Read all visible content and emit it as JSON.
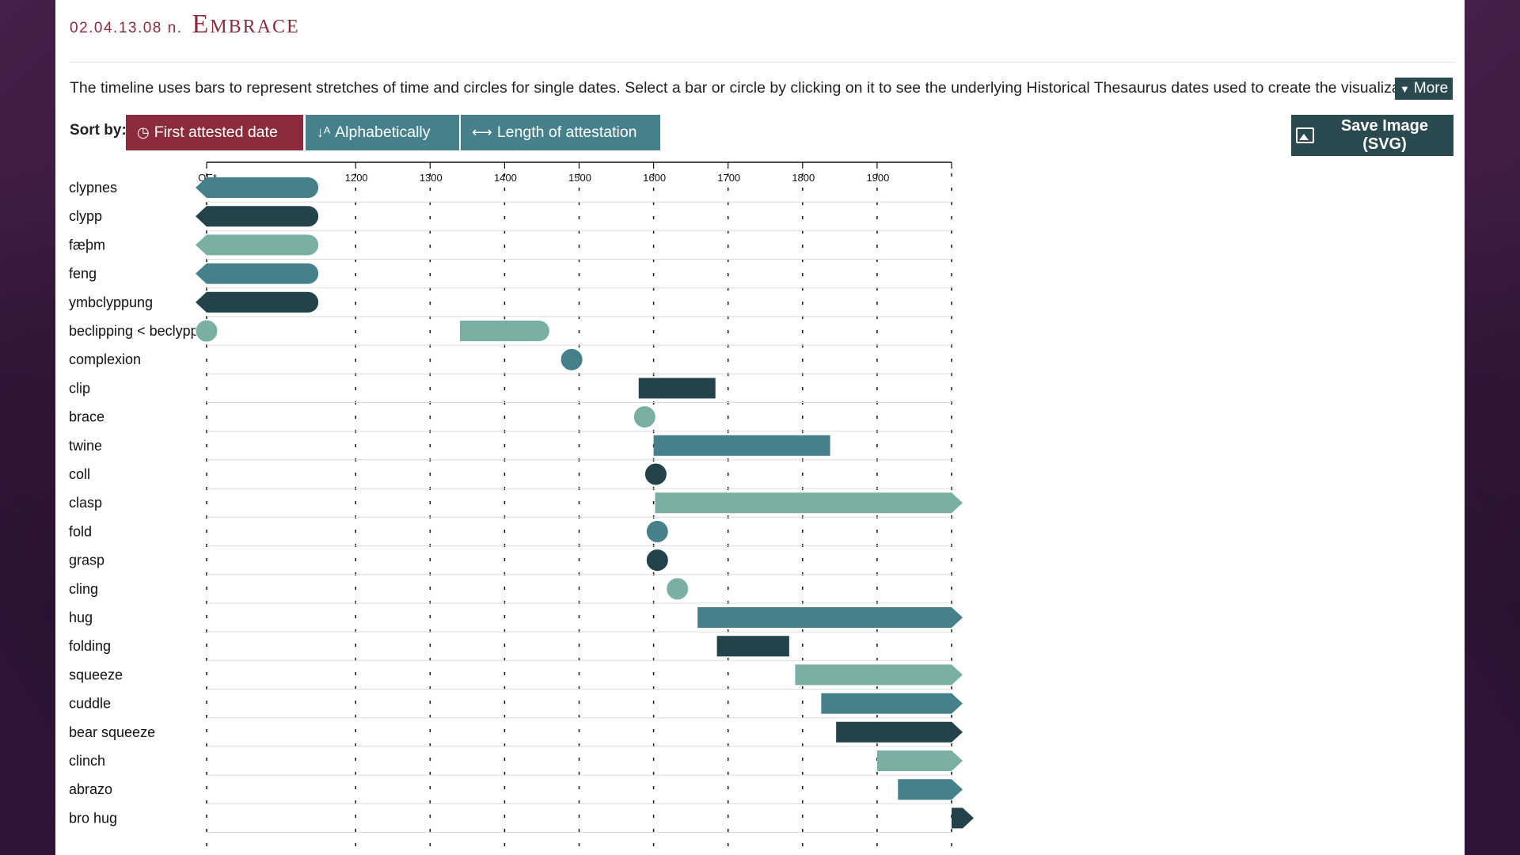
{
  "header": {
    "code": "02.04.13.08 n.",
    "title": "Embrace"
  },
  "description": "The timeline uses bars to represent stretches of time and circles for single dates. Select a bar or circle by clicking on it to see the underlying Historical Thesaurus dates used to create the visualization.",
  "more_label": "More",
  "sort": {
    "label": "Sort by:",
    "first_attested": "First attested date",
    "alphabetically": "Alphabetically",
    "length": "Length of attestation"
  },
  "save_label": "Save Image (SVG)",
  "colors": {
    "accent": "#8c2b3b",
    "teal": "#46808a",
    "dark": "#2a4a50",
    "light": "#7ab0a3"
  },
  "chart_data": {
    "type": "timeline",
    "axis_ticks": [
      "OE*",
      "1200",
      "1300",
      "1400",
      "1500",
      "1600",
      "1700",
      "1800",
      "1900"
    ],
    "xlim": [
      1000,
      2000
    ],
    "rows": [
      {
        "label": "clypnes",
        "kind": "bar",
        "start": 1000,
        "end": 1150,
        "open_start": true,
        "open_end": false,
        "color": "#46808a"
      },
      {
        "label": "clypp",
        "kind": "bar",
        "start": 1000,
        "end": 1150,
        "open_start": true,
        "open_end": false,
        "color": "#24424a"
      },
      {
        "label": "fæþm",
        "kind": "bar",
        "start": 1000,
        "end": 1150,
        "open_start": true,
        "open_end": false,
        "color": "#7ab0a3"
      },
      {
        "label": "feng",
        "kind": "bar",
        "start": 1000,
        "end": 1150,
        "open_start": true,
        "open_end": false,
        "color": "#46808a"
      },
      {
        "label": "ymbclyppung",
        "kind": "bar",
        "start": 1000,
        "end": 1150,
        "open_start": true,
        "open_end": false,
        "color": "#24424a"
      },
      {
        "label": "beclipping < beclypping",
        "kind": "dot_bar",
        "dot": 1000,
        "start": 1340,
        "end": 1460,
        "color": "#7ab0a3"
      },
      {
        "label": "complexion",
        "kind": "dot",
        "date": 1490,
        "color": "#46808a"
      },
      {
        "label": "clip",
        "kind": "bar",
        "start": 1580,
        "end": 1683,
        "open_start": false,
        "open_end": false,
        "color": "#24424a"
      },
      {
        "label": "brace",
        "kind": "dot",
        "date": 1588,
        "color": "#7ab0a3"
      },
      {
        "label": "twine",
        "kind": "bar",
        "start": 1600,
        "end": 1837,
        "open_start": false,
        "open_end": false,
        "color": "#46808a"
      },
      {
        "label": "coll",
        "kind": "dot",
        "date": 1603,
        "color": "#24424a"
      },
      {
        "label": "clasp",
        "kind": "bar",
        "start": 1602,
        "end": 2000,
        "open_start": false,
        "open_end": true,
        "color": "#7ab0a3"
      },
      {
        "label": "fold",
        "kind": "dot",
        "date": 1605,
        "color": "#46808a"
      },
      {
        "label": "grasp",
        "kind": "dot",
        "date": 1605,
        "color": "#24424a"
      },
      {
        "label": "cling",
        "kind": "dot",
        "date": 1632,
        "color": "#7ab0a3"
      },
      {
        "label": "hug",
        "kind": "bar",
        "start": 1659,
        "end": 2000,
        "open_start": false,
        "open_end": true,
        "color": "#46808a"
      },
      {
        "label": "folding",
        "kind": "bar",
        "start": 1685,
        "end": 1782,
        "open_start": false,
        "open_end": false,
        "color": "#24424a"
      },
      {
        "label": "squeeze",
        "kind": "bar",
        "start": 1790,
        "end": 2000,
        "open_start": false,
        "open_end": true,
        "color": "#7ab0a3"
      },
      {
        "label": "cuddle",
        "kind": "bar",
        "start": 1825,
        "end": 2000,
        "open_start": false,
        "open_end": true,
        "color": "#46808a"
      },
      {
        "label": "bear squeeze",
        "kind": "bar",
        "start": 1845,
        "end": 2000,
        "open_start": false,
        "open_end": true,
        "color": "#24424a"
      },
      {
        "label": "clinch",
        "kind": "bar",
        "start": 1900,
        "end": 2000,
        "open_start": false,
        "open_end": true,
        "color": "#7ab0a3"
      },
      {
        "label": "abrazo",
        "kind": "bar",
        "start": 1928,
        "end": 2000,
        "open_start": false,
        "open_end": true,
        "color": "#46808a"
      },
      {
        "label": "bro hug",
        "kind": "bar",
        "start": 2000,
        "end": 2000,
        "open_start": false,
        "open_end": true,
        "color": "#24424a"
      }
    ]
  }
}
